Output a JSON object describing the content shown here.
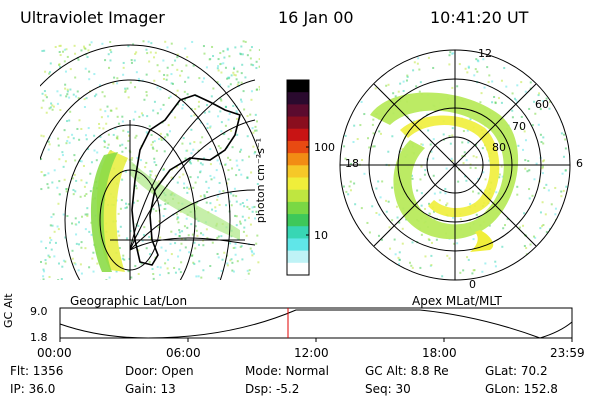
{
  "header": {
    "instrument": "Ultraviolet Imager",
    "date": "16 Jan 00",
    "time": "10:41:20 UT"
  },
  "colorbar": {
    "unit_label": "photon cm⁻²s⁻¹",
    "ticks": [
      "100",
      "10"
    ],
    "colors": [
      "#000000",
      "#2a0a2e",
      "#5b0b2e",
      "#8a0e1e",
      "#c81414",
      "#e84a12",
      "#f28c14",
      "#f6c828",
      "#f0ee3a",
      "#bfe640",
      "#7ad844",
      "#3ec85a",
      "#38d6b4",
      "#60e6e8",
      "#bff3f6",
      "#ffffff"
    ]
  },
  "geo_panel": {
    "caption": "Geographic Lat/Lon"
  },
  "polar_panel": {
    "caption": "Apex MLat/MLT",
    "mlt_labels": {
      "top": "12",
      "left": "18",
      "right": "6",
      "bottom": "0"
    },
    "lat_labels": [
      "60",
      "70",
      "80"
    ]
  },
  "timeline": {
    "y_axis_label": "GC Alt",
    "y_ticks": [
      "9.0",
      "1.8"
    ],
    "x_ticks": [
      "00:00",
      "06:00",
      "12:00",
      "18:00",
      "23:59"
    ],
    "current_marker_time": "10:41"
  },
  "status": {
    "flt": "Flt: 1356",
    "ip": "IP: 36.0",
    "door": "Door: Open",
    "gain": "Gain: 13",
    "mode": "Mode: Normal",
    "dsp": "Dsp:    -5.2",
    "gc_alt": "GC Alt: 8.8 Re",
    "seq": "Seq: 30",
    "glat": "GLat:  70.2",
    "glon": "GLon: 152.8"
  }
}
